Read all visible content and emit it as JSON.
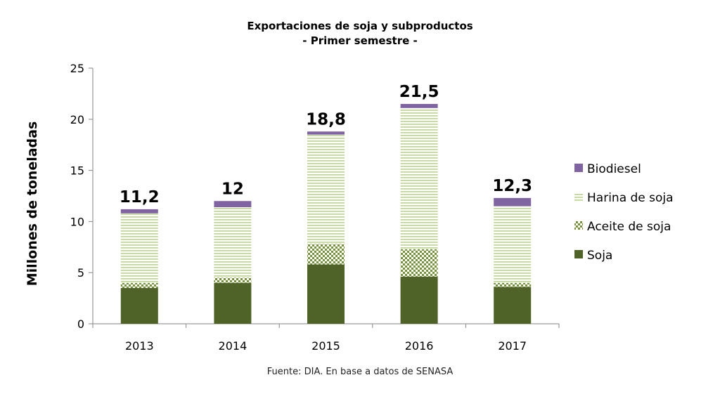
{
  "chart_data": {
    "type": "bar",
    "stacked": true,
    "title": "Exportaciones de soja y subproductos",
    "subtitle": "- Primer semestre -",
    "ylabel": "Millones de toneladas",
    "xlabel": "",
    "ylim": [
      0,
      25
    ],
    "yticks": [
      0,
      5,
      10,
      15,
      20,
      25
    ],
    "categories": [
      "2013",
      "2014",
      "2015",
      "2016",
      "2017"
    ],
    "series": [
      {
        "name": "Soja",
        "values": [
          3.5,
          4.0,
          5.8,
          4.6,
          3.6
        ]
      },
      {
        "name": "Aceite de soja",
        "values": [
          0.5,
          0.5,
          2.0,
          2.7,
          0.4
        ]
      },
      {
        "name": "Harina de soja",
        "values": [
          6.8,
          6.9,
          10.7,
          13.8,
          7.5
        ]
      },
      {
        "name": "Biodiesel",
        "values": [
          0.4,
          0.6,
          0.3,
          0.4,
          0.8
        ]
      }
    ],
    "totals": [
      "11,2",
      "12",
      "18,8",
      "21,5",
      "12,3"
    ],
    "legend_order": [
      "Biodiesel",
      "Harina de soja",
      "Aceite de soja",
      "Soja"
    ],
    "legend_position": "right",
    "grid": false,
    "colors": {
      "Soja": "#4f6228",
      "Aceite de soja": "#76923c",
      "Harina de soja": "#c3d69b",
      "Biodiesel": "#8064a2"
    }
  },
  "source": "Fuente: DIA. En base a datos de SENASA"
}
